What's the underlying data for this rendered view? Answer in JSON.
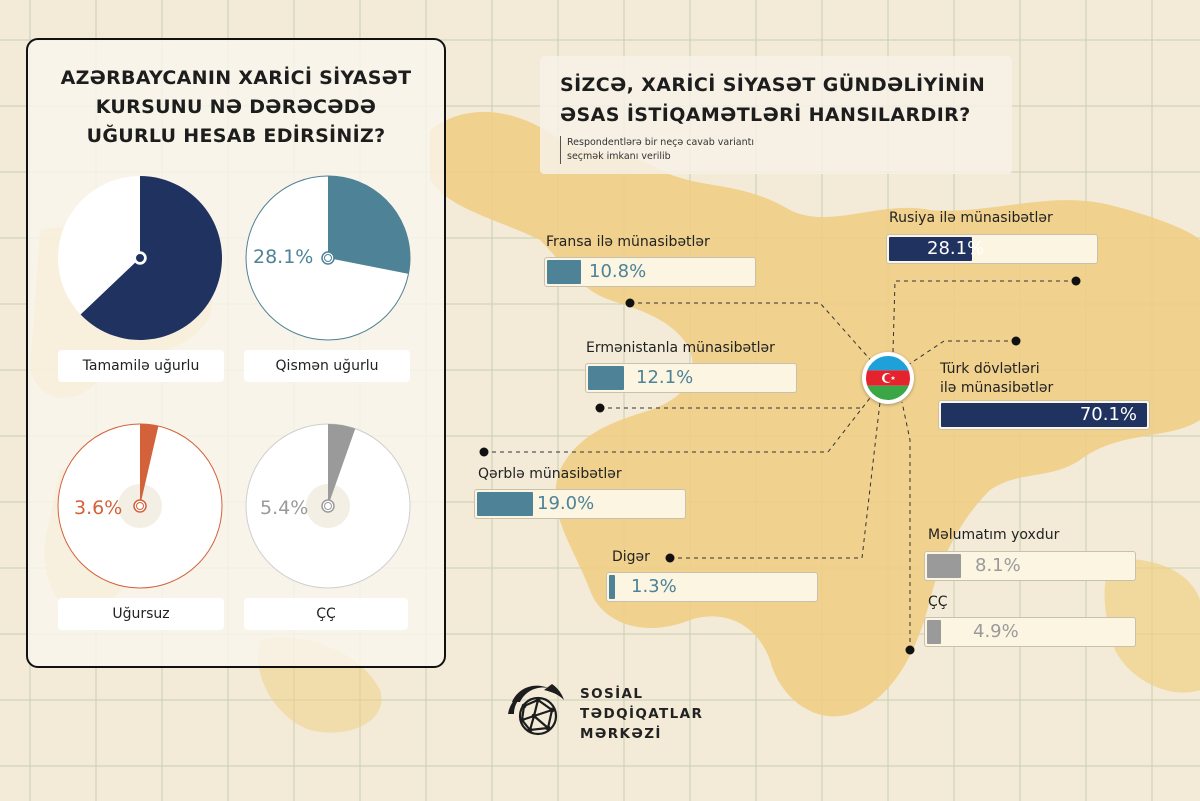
{
  "left_panel": {
    "title_lines": [
      "AZƏRBAYCANIN XARİCİ SİYASƏT",
      "KURSUNU NƏ DƏRƏCƏDƏ",
      "UĞURLU HESAB EDİRSİNİZ?"
    ]
  },
  "right_panel": {
    "title_lines": [
      "SİZCƏ, XARİCİ SİYASƏT GÜNDƏLİYİNİN",
      "ƏSAS İSTİQAMƏTLƏRİ HANSILARDIR?"
    ],
    "note_lines": [
      "Respondentlərə bir neçə cavab variantı",
      "seçmək imkanı verilib"
    ]
  },
  "colors": {
    "navy": "#20325f",
    "teal": "#4e8296",
    "orange": "#d3623a",
    "gray": "#9a9a9a",
    "map": "#f0cf86"
  },
  "chart_data": [
    {
      "type": "pie",
      "title": "AZƏRBAYCANIN XARİCİ SİYASƏT KURSUNU NƏ DƏRƏCƏDƏ UĞURLU HESAB EDİRSİNİZ?",
      "slices": [
        {
          "label": "Tamamilə uğurlu",
          "value": 62.9,
          "display": "62.9%"
        },
        {
          "label": "Qismən uğurlu",
          "value": 28.1,
          "display": "28.1%"
        },
        {
          "label": "Uğursuz",
          "value": 3.6,
          "display": "3.6%"
        },
        {
          "label": "ÇÇ",
          "value": 5.4,
          "display": "5.4%"
        }
      ]
    },
    {
      "type": "bar",
      "title": "SİZCƏ, XARİCİ SİYASƏT GÜNDƏLİYİNİN ƏSAS İSTİQAMƏTLƏRİ HANSILARDIR?",
      "unit": "%",
      "bars": [
        {
          "label": "Fransa ilə münasibətlər",
          "value": 10.8,
          "display": "10.8%"
        },
        {
          "label": "Rusiya ilə münasibətlər",
          "value": 28.1,
          "display": "28.1%"
        },
        {
          "label": "Ermənistanla münasibətlər",
          "value": 12.1,
          "display": "12.1%"
        },
        {
          "label": "Türk dövlətləri ilə münasibətlər",
          "label_lines": [
            "Türk dövlətləri",
            "ilə münasibətlər"
          ],
          "value": 70.1,
          "display": "70.1%"
        },
        {
          "label": "Qərblə münasibətlər",
          "value": 19.0,
          "display": "19.0%"
        },
        {
          "label": "Digər",
          "value": 1.3,
          "display": "1.3%"
        },
        {
          "label": "Məlumatım yoxdur",
          "value": 8.1,
          "display": "8.1%"
        },
        {
          "label": "ÇÇ",
          "value": 4.9,
          "display": "4.9%"
        }
      ]
    }
  ],
  "logo": {
    "lines": [
      "SOSİAL",
      "TƏDQİQATLAR",
      "MƏRKƏZİ"
    ]
  }
}
